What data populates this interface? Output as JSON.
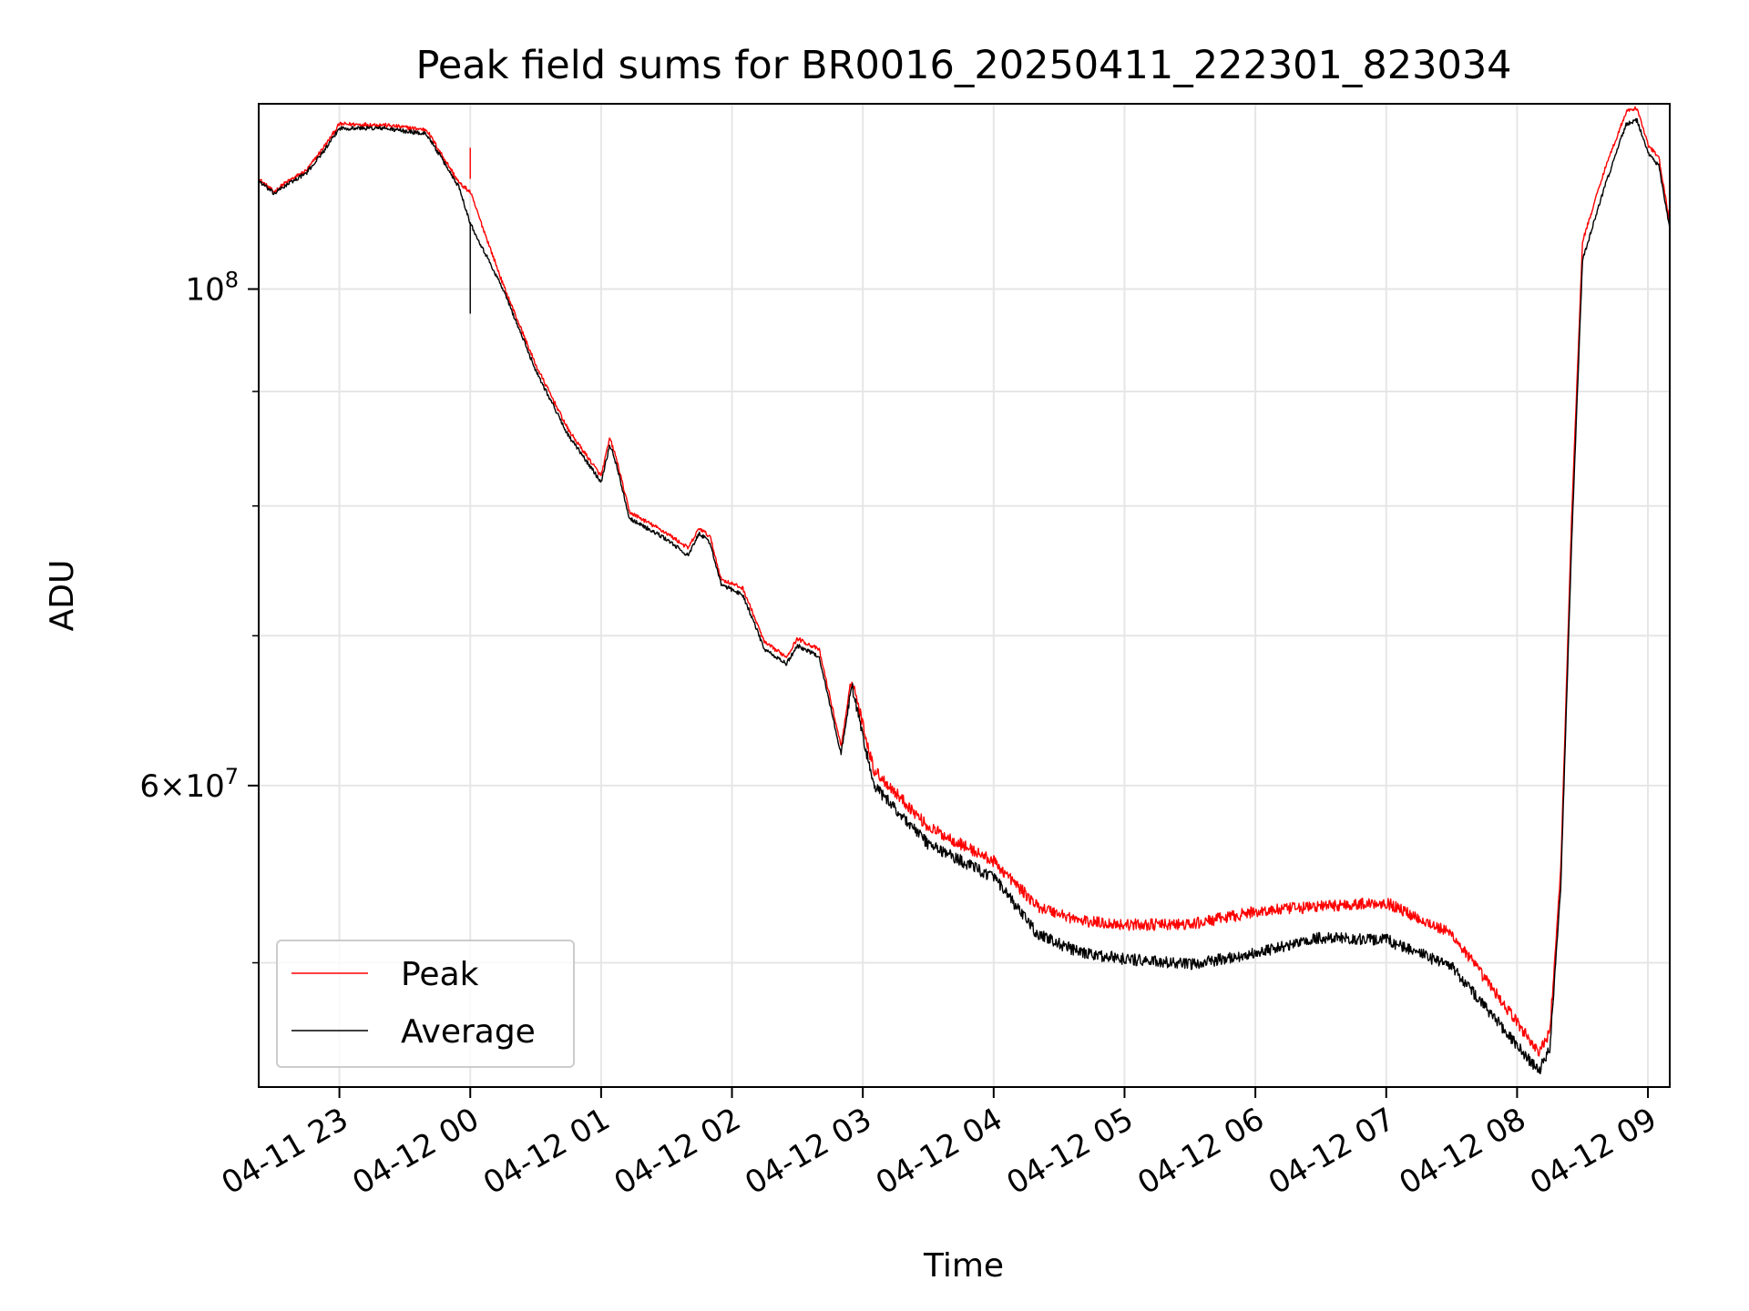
{
  "chart_data": {
    "type": "line",
    "title": "Peak field sums for BR0016_20250411_222301_823034",
    "xlabel": "Time",
    "ylabel": "ADU",
    "x_axis_type": "datetime",
    "y_scale": "log",
    "grid": true,
    "legend_position": "lower-left",
    "xlim": [
      "2025-04-11 22:23",
      "2025-04-12 09:10"
    ],
    "ylim": [
      44000000,
      121000000
    ],
    "x_ticks": [
      {
        "t": "2025-04-11 23:00",
        "label": "04-11 23"
      },
      {
        "t": "2025-04-12 00:00",
        "label": "04-12 00"
      },
      {
        "t": "2025-04-12 01:00",
        "label": "04-12 01"
      },
      {
        "t": "2025-04-12 02:00",
        "label": "04-12 02"
      },
      {
        "t": "2025-04-12 03:00",
        "label": "04-12 03"
      },
      {
        "t": "2025-04-12 04:00",
        "label": "04-12 04"
      },
      {
        "t": "2025-04-12 05:00",
        "label": "04-12 05"
      },
      {
        "t": "2025-04-12 06:00",
        "label": "04-12 06"
      },
      {
        "t": "2025-04-12 07:00",
        "label": "04-12 07"
      },
      {
        "t": "2025-04-12 08:00",
        "label": "04-12 08"
      },
      {
        "t": "2025-04-12 09:00",
        "label": "04-12 09"
      }
    ],
    "y_major_ticks": [
      {
        "value": 100000000,
        "base": "10",
        "exp": "8"
      },
      {
        "value": 60000000,
        "mant": "6",
        "base": "10",
        "exp": "7"
      }
    ],
    "y_minor_ticks": [
      50000000,
      70000000,
      80000000,
      90000000
    ],
    "series": [
      {
        "name": "Peak",
        "color": "#ff0000",
        "noise": 0.006,
        "points": [
          [
            "2025-04-11 22:23",
            112000000
          ],
          [
            "2025-04-11 22:30",
            110500000
          ],
          [
            "2025-04-11 22:35",
            111500000
          ],
          [
            "2025-04-11 22:45",
            113000000
          ],
          [
            "2025-04-11 22:55",
            116500000
          ],
          [
            "2025-04-11 23:00",
            118500000
          ],
          [
            "2025-04-11 23:20",
            118400000
          ],
          [
            "2025-04-11 23:40",
            117800000
          ],
          [
            "2025-04-11 23:55",
            111500000
          ],
          [
            "2025-04-12 00:00",
            110500000
          ],
          [
            "2025-04-12 00:15",
            100500000
          ],
          [
            "2025-04-12 00:30",
            92500000
          ],
          [
            "2025-04-12 00:45",
            86500000
          ],
          [
            "2025-04-12 01:00",
            82500000
          ],
          [
            "2025-04-12 01:04",
            85800000
          ],
          [
            "2025-04-12 01:07",
            84000000
          ],
          [
            "2025-04-12 01:13",
            79500000
          ],
          [
            "2025-04-12 01:30",
            77800000
          ],
          [
            "2025-04-12 01:40",
            76600000
          ],
          [
            "2025-04-12 01:45",
            78200000
          ],
          [
            "2025-04-12 01:50",
            77500000
          ],
          [
            "2025-04-12 01:55",
            74200000
          ],
          [
            "2025-04-12 02:05",
            73500000
          ],
          [
            "2025-04-12 02:15",
            69500000
          ],
          [
            "2025-04-12 02:25",
            68500000
          ],
          [
            "2025-04-12 02:30",
            69800000
          ],
          [
            "2025-04-12 02:40",
            69000000
          ],
          [
            "2025-04-12 02:50",
            62500000
          ],
          [
            "2025-04-12 02:55",
            67000000
          ],
          [
            "2025-04-12 03:05",
            61000000
          ],
          [
            "2025-04-12 03:30",
            57500000
          ],
          [
            "2025-04-12 04:00",
            55500000
          ],
          [
            "2025-04-12 04:20",
            53000000
          ],
          [
            "2025-04-12 04:40",
            52200000
          ],
          [
            "2025-04-12 05:00",
            52000000
          ],
          [
            "2025-04-12 05:30",
            52000000
          ],
          [
            "2025-04-12 06:00",
            52700000
          ],
          [
            "2025-04-12 06:30",
            53000000
          ],
          [
            "2025-04-12 07:00",
            53200000
          ],
          [
            "2025-04-12 07:30",
            51500000
          ],
          [
            "2025-04-12 07:50",
            48500000
          ],
          [
            "2025-04-12 08:10",
            45600000
          ],
          [
            "2025-04-12 08:15",
            46500000
          ],
          [
            "2025-04-12 08:20",
            55000000
          ],
          [
            "2025-04-12 08:25",
            79000000
          ],
          [
            "2025-04-12 08:30",
            105000000
          ],
          [
            "2025-04-12 08:40",
            113000000
          ],
          [
            "2025-04-12 08:50",
            120000000
          ],
          [
            "2025-04-12 08:55",
            120500000
          ],
          [
            "2025-04-12 09:00",
            116000000
          ],
          [
            "2025-04-12 09:05",
            114500000
          ],
          [
            "2025-04-12 09:10",
            107000000
          ]
        ]
      },
      {
        "name": "Average",
        "color": "#000000",
        "noise": 0.006,
        "points": [
          [
            "2025-04-11 22:23",
            111800000
          ],
          [
            "2025-04-11 22:30",
            110300000
          ],
          [
            "2025-04-11 22:35",
            111200000
          ],
          [
            "2025-04-11 22:45",
            112700000
          ],
          [
            "2025-04-11 22:55",
            116000000
          ],
          [
            "2025-04-11 23:00",
            118000000
          ],
          [
            "2025-04-11 23:20",
            118000000
          ],
          [
            "2025-04-11 23:40",
            117300000
          ],
          [
            "2025-04-11 23:55",
            111000000
          ],
          [
            "2025-04-12 00:00",
            107000000
          ],
          [
            "2025-04-12 00:15",
            100000000
          ],
          [
            "2025-04-12 00:30",
            92000000
          ],
          [
            "2025-04-12 00:45",
            86000000
          ],
          [
            "2025-04-12 01:00",
            82000000
          ],
          [
            "2025-04-12 01:04",
            85200000
          ],
          [
            "2025-04-12 01:07",
            83500000
          ],
          [
            "2025-04-12 01:13",
            79000000
          ],
          [
            "2025-04-12 01:30",
            77300000
          ],
          [
            "2025-04-12 01:40",
            76000000
          ],
          [
            "2025-04-12 01:45",
            77800000
          ],
          [
            "2025-04-12 01:50",
            77000000
          ],
          [
            "2025-04-12 01:55",
            73800000
          ],
          [
            "2025-04-12 02:05",
            73000000
          ],
          [
            "2025-04-12 02:15",
            69000000
          ],
          [
            "2025-04-12 02:25",
            68000000
          ],
          [
            "2025-04-12 02:30",
            69300000
          ],
          [
            "2025-04-12 02:40",
            68500000
          ],
          [
            "2025-04-12 02:50",
            62000000
          ],
          [
            "2025-04-12 02:55",
            66500000
          ],
          [
            "2025-04-12 03:05",
            60000000
          ],
          [
            "2025-04-12 03:30",
            56500000
          ],
          [
            "2025-04-12 04:00",
            54600000
          ],
          [
            "2025-04-12 04:20",
            51500000
          ],
          [
            "2025-04-12 04:40",
            50500000
          ],
          [
            "2025-04-12 05:00",
            50200000
          ],
          [
            "2025-04-12 05:30",
            49900000
          ],
          [
            "2025-04-12 06:00",
            50500000
          ],
          [
            "2025-04-12 06:30",
            51300000
          ],
          [
            "2025-04-12 07:00",
            51200000
          ],
          [
            "2025-04-12 07:30",
            49800000
          ],
          [
            "2025-04-12 07:50",
            47200000
          ],
          [
            "2025-04-12 08:10",
            44700000
          ],
          [
            "2025-04-12 08:15",
            45800000
          ],
          [
            "2025-04-12 08:20",
            54000000
          ],
          [
            "2025-04-12 08:25",
            77000000
          ],
          [
            "2025-04-12 08:30",
            103000000
          ],
          [
            "2025-04-12 08:40",
            111000000
          ],
          [
            "2025-04-12 08:50",
            118500000
          ],
          [
            "2025-04-12 08:55",
            119000000
          ],
          [
            "2025-04-12 09:00",
            115000000
          ],
          [
            "2025-04-12 09:05",
            113500000
          ],
          [
            "2025-04-12 09:10",
            106500000
          ]
        ]
      }
    ]
  }
}
